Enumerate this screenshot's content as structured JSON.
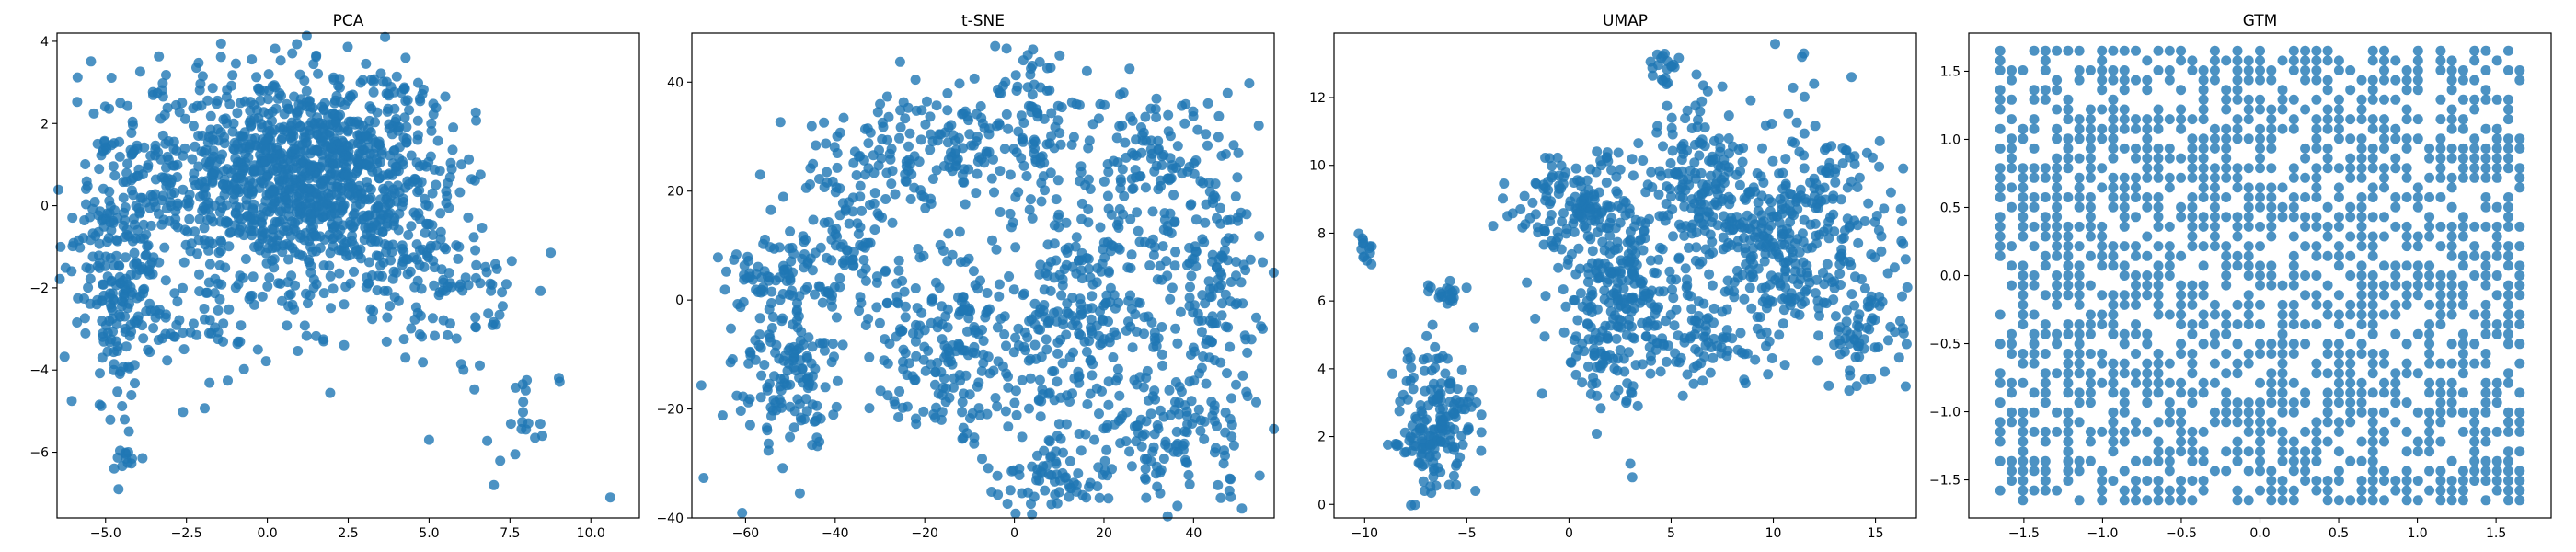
{
  "chart_data": [
    {
      "type": "scatter",
      "title": "PCA",
      "xlim": [
        -6.5,
        11.5
      ],
      "ylim": [
        -7.6,
        4.2
      ],
      "xticks": [
        -5.0,
        -2.5,
        0.0,
        2.5,
        5.0,
        7.5,
        10.0
      ],
      "xtick_labels": [
        "−5.0",
        "−2.5",
        "0.0",
        "2.5",
        "5.0",
        "7.5",
        "10.0"
      ],
      "yticks": [
        -6,
        -4,
        -2,
        0,
        2,
        4
      ],
      "ytick_labels": [
        "−6",
        "−4",
        "−2",
        "0",
        "2",
        "4"
      ],
      "color": "#1f77b4",
      "clusters": [
        {
          "cx": 0.5,
          "cy": 0.8,
          "sx": 2.2,
          "sy": 1.3,
          "n": 900
        },
        {
          "cx": -4.5,
          "cy": -1.2,
          "sx": 0.8,
          "sy": 1.8,
          "n": 260
        },
        {
          "cx": 3.0,
          "cy": 0.5,
          "sx": 1.6,
          "sy": 1.2,
          "n": 300
        },
        {
          "cx": 5.5,
          "cy": -2.2,
          "sx": 1.2,
          "sy": 1.0,
          "n": 90
        },
        {
          "cx": 8.0,
          "cy": -5.0,
          "sx": 0.5,
          "sy": 0.5,
          "n": 18
        },
        {
          "cx": -4.5,
          "cy": -6.3,
          "sx": 0.2,
          "sy": 0.4,
          "n": 10
        },
        {
          "cx": -1.5,
          "cy": -2.8,
          "sx": 2.0,
          "sy": 0.8,
          "n": 80
        }
      ],
      "points": [
        [
          10.6,
          -7.1
        ],
        [
          7.0,
          -6.8
        ],
        [
          -4.6,
          -6.9
        ],
        [
          -4.3,
          -6.0
        ],
        [
          8.5,
          -5.6
        ],
        [
          5.0,
          -5.7
        ]
      ]
    },
    {
      "type": "scatter",
      "title": "t-SNE",
      "xlim": [
        -72,
        58
      ],
      "ylim": [
        -40,
        49
      ],
      "xticks": [
        -60,
        -40,
        -20,
        0,
        20,
        40
      ],
      "xtick_labels": [
        "−60",
        "−40",
        "−20",
        "0",
        "20",
        "40"
      ],
      "yticks": [
        -40,
        -20,
        0,
        20,
        40
      ],
      "ytick_labels": [
        "−40",
        "−20",
        "0",
        "20",
        "40"
      ],
      "color": "#1f77b4",
      "clusters": [
        {
          "cx": -50,
          "cy": -12,
          "sx": 6,
          "sy": 9,
          "n": 160
        },
        {
          "cx": -38,
          "cy": 12,
          "sx": 8,
          "sy": 8,
          "n": 110
        },
        {
          "cx": -20,
          "cy": 28,
          "sx": 12,
          "sy": 5,
          "n": 150
        },
        {
          "cx": 3,
          "cy": 32,
          "sx": 5,
          "sy": 8,
          "n": 80
        },
        {
          "cx": 28,
          "cy": 25,
          "sx": 9,
          "sy": 7,
          "n": 120
        },
        {
          "cx": 44,
          "cy": 5,
          "sx": 6,
          "sy": 12,
          "n": 150
        },
        {
          "cx": 35,
          "cy": -25,
          "sx": 9,
          "sy": 7,
          "n": 130
        },
        {
          "cx": 10,
          "cy": -32,
          "sx": 7,
          "sy": 4,
          "n": 70
        },
        {
          "cx": -15,
          "cy": -10,
          "sx": 9,
          "sy": 9,
          "n": 170
        },
        {
          "cx": 8,
          "cy": -5,
          "sx": 9,
          "sy": 12,
          "n": 180
        },
        {
          "cx": 20,
          "cy": 0,
          "sx": 6,
          "sy": 10,
          "n": 90
        },
        {
          "cx": -55,
          "cy": 5,
          "sx": 5,
          "sy": 3,
          "n": 50
        }
      ],
      "points": [
        [
          3,
          45
        ],
        [
          2,
          44
        ],
        [
          4,
          43
        ],
        [
          -2,
          40
        ],
        [
          48,
          -35
        ],
        [
          50,
          27
        ]
      ]
    },
    {
      "type": "scatter",
      "title": "UMAP",
      "xlim": [
        -11.5,
        17
      ],
      "ylim": [
        -0.4,
        13.9
      ],
      "xticks": [
        -10,
        -5,
        0,
        5,
        10,
        15
      ],
      "xtick_labels": [
        "−10",
        "−5",
        "0",
        "5",
        "10",
        "15"
      ],
      "yticks": [
        0,
        2,
        4,
        6,
        8,
        10,
        12
      ],
      "ytick_labels": [
        "0",
        "2",
        "4",
        "6",
        "8",
        "10",
        "12"
      ],
      "color": "#1f77b4",
      "clusters": [
        {
          "cx": -6.5,
          "cy": 2.4,
          "sx": 1.0,
          "sy": 1.1,
          "n": 180
        },
        {
          "cx": -6.0,
          "cy": 6.2,
          "sx": 0.5,
          "sy": 0.2,
          "n": 20
        },
        {
          "cx": -10.0,
          "cy": 7.5,
          "sx": 0.2,
          "sy": 0.25,
          "n": 14
        },
        {
          "cx": 0.5,
          "cy": 8.8,
          "sx": 1.6,
          "sy": 0.8,
          "n": 140
        },
        {
          "cx": 2.5,
          "cy": 6.5,
          "sx": 1.6,
          "sy": 1.2,
          "n": 200
        },
        {
          "cx": 1.5,
          "cy": 4.5,
          "sx": 1.2,
          "sy": 0.7,
          "n": 70
        },
        {
          "cx": 6.5,
          "cy": 9.5,
          "sx": 1.4,
          "sy": 1.2,
          "n": 160
        },
        {
          "cx": 9.5,
          "cy": 7.5,
          "sx": 1.8,
          "sy": 1.5,
          "n": 200
        },
        {
          "cx": 12.5,
          "cy": 8.5,
          "sx": 1.8,
          "sy": 1.6,
          "n": 160
        },
        {
          "cx": 14.5,
          "cy": 5.0,
          "sx": 1.0,
          "sy": 1.0,
          "n": 60
        },
        {
          "cx": 6.5,
          "cy": 4.8,
          "sx": 1.2,
          "sy": 0.6,
          "n": 60
        },
        {
          "cx": 4.7,
          "cy": 12.8,
          "sx": 0.35,
          "sy": 0.3,
          "n": 20
        }
      ],
      "points": [
        [
          11.5,
          13.3
        ],
        [
          11.4,
          13.2
        ],
        [
          3.0,
          1.2
        ],
        [
          3.1,
          0.8
        ],
        [
          2.8,
          3.0
        ]
      ]
    },
    {
      "type": "scatter",
      "title": "GTM",
      "xlim": [
        -1.85,
        1.85
      ],
      "ylim": [
        -1.78,
        1.78
      ],
      "xticks": [
        -1.5,
        -1.0,
        -0.5,
        0.0,
        0.5,
        1.0,
        1.5
      ],
      "xtick_labels": [
        "−1.5",
        "−1.0",
        "−0.5",
        "0.0",
        "0.5",
        "1.0",
        "1.5"
      ],
      "yticks": [
        -1.5,
        -1.0,
        -0.5,
        0.0,
        0.5,
        1.0,
        1.5
      ],
      "ytick_labels": [
        "−1.5",
        "−1.0",
        "−0.5",
        "0.0",
        "0.5",
        "1.0",
        "1.5"
      ],
      "color": "#1f77b4",
      "grid_range": [
        -1.65,
        1.65
      ],
      "grid_steps": 46,
      "grid_fill": 0.62
    }
  ]
}
